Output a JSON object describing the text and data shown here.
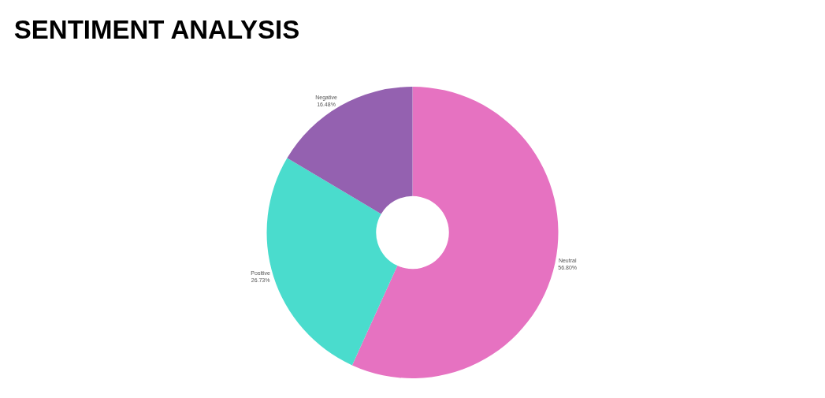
{
  "chart_data": {
    "type": "donut",
    "title": "SENTIMENT ANALYSIS",
    "categories": [
      "Neutral",
      "Positive",
      "Negative"
    ],
    "values": [
      56.8,
      26.73,
      16.48
    ],
    "value_labels": [
      "56.80%",
      "26.73%",
      "16.48%"
    ],
    "colors": [
      "#e672c1",
      "#4adccd",
      "#9461b0"
    ],
    "legend": false
  }
}
